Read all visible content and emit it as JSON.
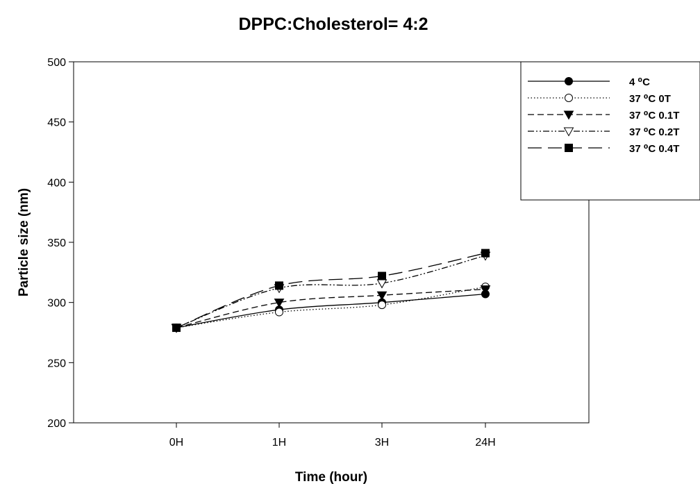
{
  "chart_data": {
    "type": "line",
    "title": "DPPC:Cholesterol= 4:2",
    "xlabel": "Time (hour)",
    "ylabel": "Particle size (nm)",
    "categories": [
      "0H",
      "1H",
      "3H",
      "24H"
    ],
    "ylim": [
      200,
      500
    ],
    "yticks": [
      "200",
      "250",
      "300",
      "350",
      "400",
      "450",
      "500"
    ],
    "grid": false,
    "legend_position": "top-right",
    "series": [
      {
        "name": "4 ⁰C",
        "values": [
          279,
          294,
          300,
          307
        ],
        "marker": "circle-filled",
        "dash": "solid"
      },
      {
        "name": "37 ⁰C 0T",
        "values": [
          279,
          292,
          298,
          313
        ],
        "marker": "circle-open",
        "dash": "dotted"
      },
      {
        "name": "37 ⁰C 0.1T",
        "values": [
          279,
          300,
          306,
          311
        ],
        "marker": "triangle-down-filled",
        "dash": "short-dash"
      },
      {
        "name": "37 ⁰C 0.2T",
        "values": [
          279,
          312,
          316,
          339
        ],
        "marker": "triangle-down-open",
        "dash": "dash-dot-dot"
      },
      {
        "name": "37 ⁰C 0.4T",
        "values": [
          279,
          314,
          322,
          341
        ],
        "marker": "square-filled",
        "dash": "long-dash"
      }
    ]
  }
}
